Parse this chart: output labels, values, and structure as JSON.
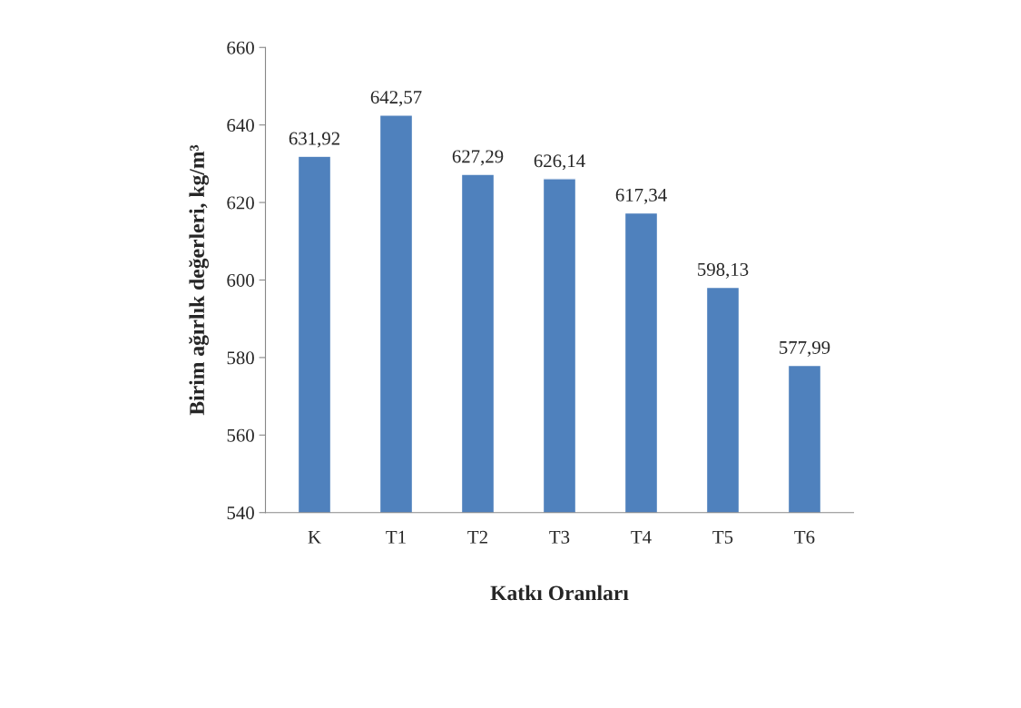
{
  "chart_data": {
    "type": "bar",
    "xlabel": "Katkı Oranları",
    "ylabel": "Birim ağırlık değerleri, kg/m³",
    "categories": [
      "K",
      "T1",
      "T2",
      "T3",
      "T4",
      "T5",
      "T6"
    ],
    "values": [
      631.92,
      642.57,
      627.29,
      626.14,
      617.34,
      598.13,
      577.99
    ],
    "value_labels": [
      "631,92",
      "642,57",
      "627,29",
      "626,14",
      "617,34",
      "598,13",
      "577,99"
    ],
    "color": "#4f81bd",
    "ylim": [
      540,
      660
    ],
    "yticks": [
      540,
      560,
      580,
      600,
      620,
      640,
      660
    ],
    "grid": false,
    "legend": false
  }
}
